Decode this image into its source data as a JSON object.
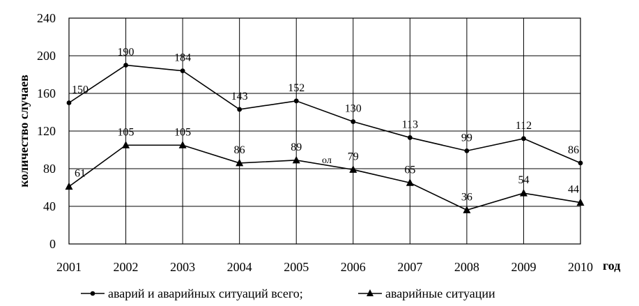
{
  "chart_data": {
    "type": "line",
    "x": [
      "2001",
      "2002",
      "2003",
      "2004",
      "2005",
      "2006",
      "2007",
      "2008",
      "2009",
      "2010"
    ],
    "series": [
      {
        "name": "аварий и аварийных ситуаций всего;",
        "marker": "circle",
        "values": [
          150,
          190,
          184,
          143,
          152,
          130,
          113,
          99,
          112,
          86
        ],
        "labels": [
          "150",
          "190",
          "184",
          "143",
          "152",
          "130",
          "113",
          "99",
          "112",
          "86"
        ]
      },
      {
        "name": "аварийные ситуации",
        "marker": "triangle",
        "values": [
          61,
          105,
          105,
          86,
          89,
          79,
          65,
          36,
          54,
          44
        ],
        "labels": [
          "61",
          "105",
          "105",
          "86",
          "89",
          "79",
          "65",
          "36",
          "54",
          "44"
        ]
      }
    ],
    "xlabel": "год",
    "ylabel": "количество случаев",
    "ylim": [
      0,
      240
    ],
    "yticks": [
      "0",
      "40",
      "80",
      "120",
      "160",
      "200",
      "240"
    ],
    "grid": true,
    "legend": "bottom",
    "annotation": "ол",
    "colors": {
      "line": "#000000",
      "grid": "#000000",
      "background": "#ffffff"
    }
  }
}
